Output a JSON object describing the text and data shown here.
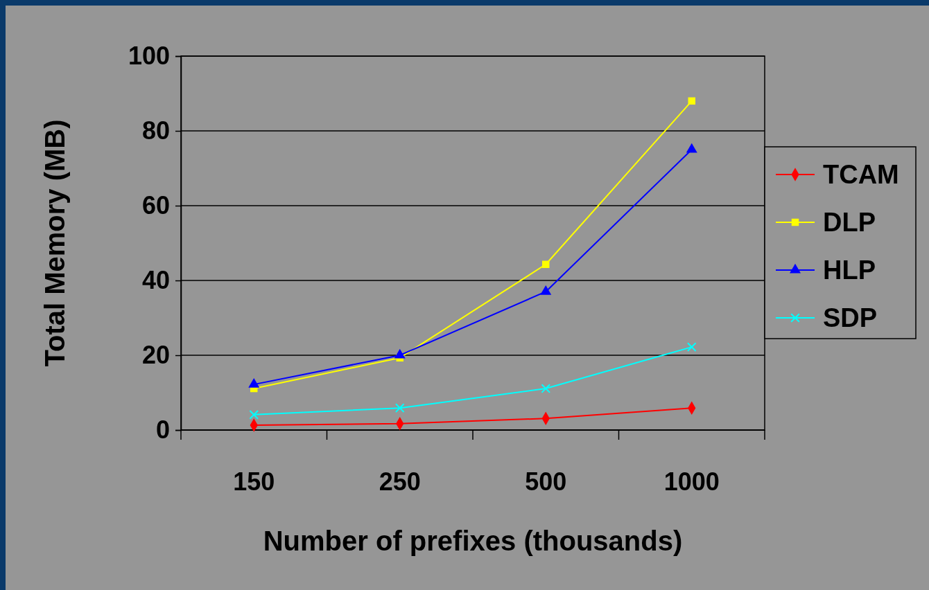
{
  "chart_data": {
    "type": "line",
    "xlabel": "Number of prefixes (thousands)",
    "ylabel": "Total Memory (MB)",
    "categories": [
      "150",
      "250",
      "500",
      "1000"
    ],
    "ylim": [
      0,
      100
    ],
    "yticks": [
      0,
      20,
      40,
      60,
      80,
      100
    ],
    "grid": "y",
    "legend": "right",
    "series": [
      {
        "name": "TCAM",
        "color": "#ff0000",
        "marker": "diamond",
        "values": [
          1.3,
          1.7,
          3.1,
          5.9
        ]
      },
      {
        "name": "DLP",
        "color": "#ffff00",
        "marker": "square",
        "values": [
          11.1,
          19.3,
          44.3,
          88
        ]
      },
      {
        "name": "HLP",
        "color": "#0000ff",
        "marker": "triangle",
        "values": [
          12.2,
          20,
          37,
          75
        ]
      },
      {
        "name": "SDP",
        "color": "#00ffff",
        "marker": "cross",
        "values": [
          4.1,
          5.9,
          11.1,
          22.2
        ]
      }
    ]
  }
}
